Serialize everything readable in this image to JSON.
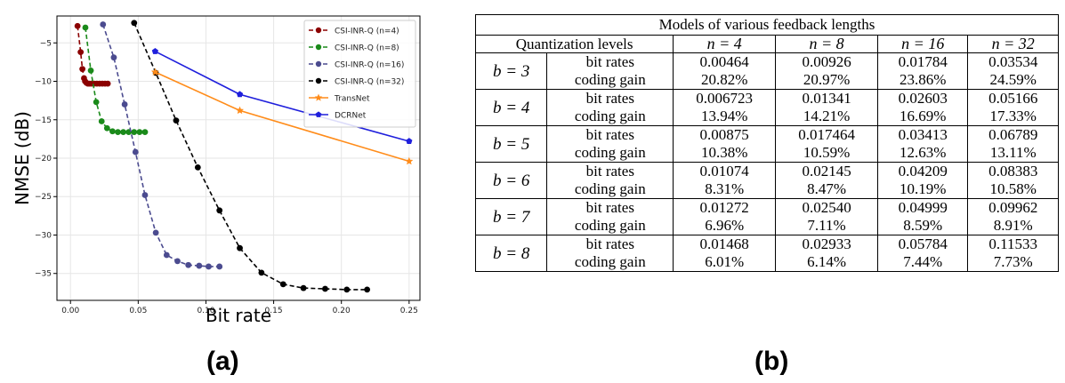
{
  "panel_a_label": "(a)",
  "panel_b_label": "(b)",
  "chart_data": {
    "type": "line",
    "xlabel": "Bit rate",
    "ylabel": "NMSE (dB)",
    "xlim": [
      -0.01,
      0.258
    ],
    "ylim": [
      -38.5,
      -1.5
    ],
    "xticks": [
      0.0,
      0.05,
      0.1,
      0.15,
      0.2,
      0.25
    ],
    "xtick_labels": [
      "0.00",
      "0.05",
      "0.10",
      "0.15",
      "0.20",
      "0.25"
    ],
    "yticks": [
      -5,
      -10,
      -15,
      -20,
      -25,
      -30,
      -35
    ],
    "ytick_labels": [
      "−5",
      "−10",
      "−15",
      "−20",
      "−25",
      "−30",
      "−35"
    ],
    "grid": true,
    "legend_position": "top-right",
    "series": [
      {
        "name": "CSI-INR-Q (n=4)",
        "color": "#8b0000",
        "style": "dashed",
        "marker": "circle",
        "x": [
          0.0052,
          0.0075,
          0.0088,
          0.01,
          0.0108,
          0.0118,
          0.0128,
          0.014,
          0.0155,
          0.0175,
          0.0195,
          0.0215,
          0.0235,
          0.0255,
          0.0275
        ],
        "y": [
          -2.8,
          -6.2,
          -8.4,
          -9.6,
          -10.0,
          -10.2,
          -10.3,
          -10.3,
          -10.3,
          -10.3,
          -10.3,
          -10.3,
          -10.3,
          -10.3,
          -10.3
        ]
      },
      {
        "name": "CSI-INR-Q (n=8)",
        "color": "#1a8a1a",
        "style": "dashed",
        "marker": "circle",
        "x": [
          0.011,
          0.015,
          0.019,
          0.023,
          0.027,
          0.031,
          0.035,
          0.039,
          0.043,
          0.047,
          0.051,
          0.055
        ],
        "y": [
          -3.0,
          -8.6,
          -12.7,
          -15.2,
          -16.1,
          -16.5,
          -16.6,
          -16.6,
          -16.6,
          -16.6,
          -16.6,
          -16.6
        ]
      },
      {
        "name": "CSI-INR-Q (n=16)",
        "color": "#4b4b8f",
        "style": "dashed",
        "marker": "circle",
        "x": [
          0.024,
          0.032,
          0.04,
          0.048,
          0.055,
          0.063,
          0.071,
          0.079,
          0.087,
          0.095,
          0.102,
          0.11
        ],
        "y": [
          -2.6,
          -6.9,
          -13.0,
          -19.2,
          -24.8,
          -29.7,
          -32.6,
          -33.4,
          -33.9,
          -34.0,
          -34.1,
          -34.1
        ]
      },
      {
        "name": "CSI-INR-Q (n=32)",
        "color": "#000000",
        "style": "dashed",
        "marker": "circle",
        "x": [
          0.047,
          0.063,
          0.078,
          0.094,
          0.11,
          0.125,
          0.141,
          0.157,
          0.172,
          0.188,
          0.204,
          0.219
        ],
        "y": [
          -2.4,
          -8.9,
          -15.1,
          -21.2,
          -26.8,
          -31.7,
          -34.9,
          -36.4,
          -36.9,
          -37.0,
          -37.1,
          -37.1
        ]
      },
      {
        "name": "TransNet",
        "color": "#ff8c1a",
        "style": "solid",
        "marker": "star",
        "x": [
          0.0625,
          0.125,
          0.25
        ],
        "y": [
          -8.8,
          -13.8,
          -20.4
        ]
      },
      {
        "name": "DCRNet",
        "color": "#1f1fdc",
        "style": "solid",
        "marker": "pentagon",
        "x": [
          0.0625,
          0.125,
          0.25
        ],
        "y": [
          -6.1,
          -11.7,
          -17.8
        ]
      }
    ]
  },
  "table": {
    "caption": "Models of various feedback lengths",
    "quant_header": "Quantization levels",
    "n_headers": [
      "n = 4",
      "n = 8",
      "n = 16",
      "n = 32"
    ],
    "metric_labels": [
      "bit rates",
      "coding gain"
    ],
    "rows": [
      {
        "b": "b = 3",
        "bit_rates": [
          "0.00464",
          "0.00926",
          "0.01784",
          "0.03534"
        ],
        "coding_gain": [
          "20.82%",
          "20.97%",
          "23.86%",
          "24.59%"
        ]
      },
      {
        "b": "b = 4",
        "bit_rates": [
          "0.006723",
          "0.01341",
          "0.02603",
          "0.05166"
        ],
        "coding_gain": [
          "13.94%",
          "14.21%",
          "16.69%",
          "17.33%"
        ]
      },
      {
        "b": "b = 5",
        "bit_rates": [
          "0.00875",
          "0.017464",
          "0.03413",
          "0.06789"
        ],
        "coding_gain": [
          "10.38%",
          "10.59%",
          "12.63%",
          "13.11%"
        ]
      },
      {
        "b": "b = 6",
        "bit_rates": [
          "0.01074",
          "0.02145",
          "0.04209",
          "0.08383"
        ],
        "coding_gain": [
          "8.31%",
          "8.47%",
          "10.19%",
          "10.58%"
        ]
      },
      {
        "b": "b = 7",
        "bit_rates": [
          "0.01272",
          "0.02540",
          "0.04999",
          "0.09962"
        ],
        "coding_gain": [
          "6.96%",
          "7.11%",
          "8.59%",
          "8.91%"
        ]
      },
      {
        "b": "b = 8",
        "bit_rates": [
          "0.01468",
          "0.02933",
          "0.05784",
          "0.11533"
        ],
        "coding_gain": [
          "6.01%",
          "6.14%",
          "7.44%",
          "7.73%"
        ]
      }
    ]
  }
}
